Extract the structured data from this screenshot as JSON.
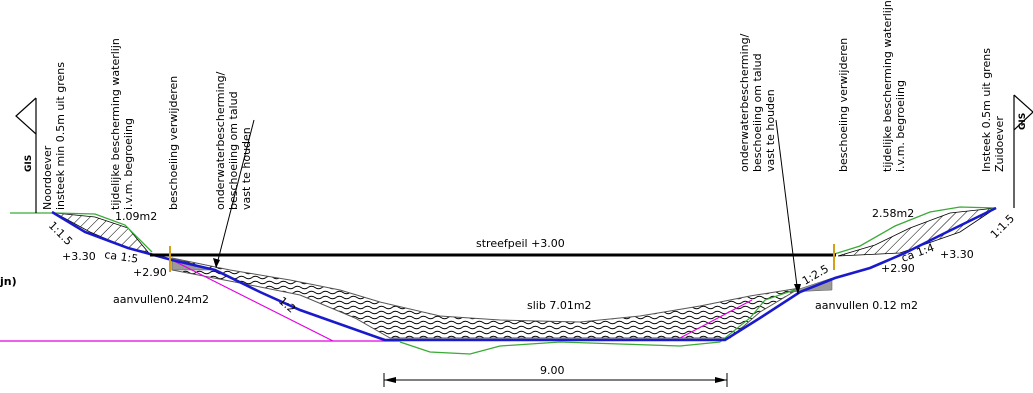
{
  "labels": {
    "streefpeil": "streefpeil +3.00",
    "slib": "slib 7.01m2",
    "width": "9.00",
    "jn": "jn)",
    "left": {
      "gis": "GIS",
      "oever_line1": "Noordoever",
      "oever_line2": "insteek min 0.5m uit grens",
      "tijd_line1": "tijdelijke bescherming waterlijn",
      "tijd_line2": "i.v.m. begroeiing",
      "beschoeiing": "beschoeiing verwijderen",
      "onder_line1": "onderwaterbescherming/",
      "onder_line2": "beschoeiing om talud",
      "onder_line3": "vast te houden",
      "area": "1.09m2",
      "slope1": "1:1.5",
      "level1": "+3.30",
      "slope2": "ca 1:5",
      "level2": "+2.90",
      "aanvullen": "aanvullen0.24m2",
      "slope3": "1:2"
    },
    "right": {
      "gis": "GIS",
      "oever_line1": "Insteek 0.5m uit grens",
      "oever_line2": "Zuidoever",
      "tijd_line1": "tijdelijke bescherming waterlijn",
      "tijd_line2": "i.v.m. begroeiing",
      "beschoeiing": "beschoeiing verwijderen",
      "onder_line1": "onderwaterbescherming/",
      "onder_line2": "beschoeiing om talud",
      "onder_line3": "vast te houden",
      "area": "2.58m2",
      "slope1": "1:1.5",
      "level1": "+3.30",
      "slope2": "ca 1:4",
      "level2": "+2.90",
      "aanvullen": "aanvullen 0.12 m2",
      "slope3": "1:2.5"
    }
  },
  "colors": {
    "profile": "#1a1acc",
    "ground": "#3aaa35",
    "pink": "#e000e0",
    "water": "#000000",
    "post": "#d4a017",
    "fill": "#9a9a9a"
  }
}
